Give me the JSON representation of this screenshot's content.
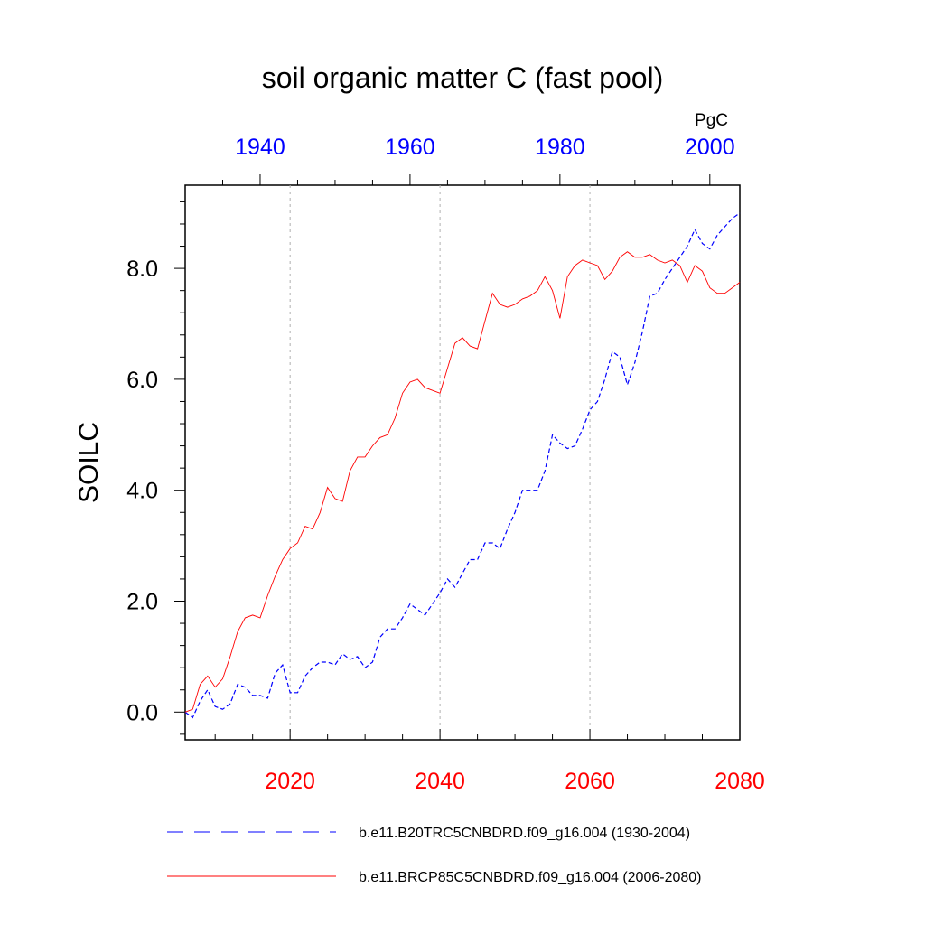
{
  "chart_data": {
    "type": "line",
    "title": "soil organic matter C (fast pool)",
    "ylabel": "SOILC",
    "units": "PgC",
    "ylim": [
      -0.5,
      9.5
    ],
    "y_ticks": [
      "0.0",
      "2.0",
      "4.0",
      "6.0",
      "8.0"
    ],
    "y_tick_values": [
      0,
      2,
      4,
      6,
      8
    ],
    "x_bottom": {
      "range": [
        2006,
        2080
      ],
      "ticks": [
        "2020",
        "2040",
        "2060",
        "2080"
      ],
      "tick_values": [
        2020,
        2040,
        2060,
        2080
      ],
      "color": "#ff0000"
    },
    "x_top": {
      "range": [
        1930,
        2004
      ],
      "ticks": [
        "1940",
        "1960",
        "1980",
        "2000"
      ],
      "tick_values": [
        1940,
        1960,
        1980,
        2000
      ],
      "color": "#0000ff"
    },
    "grid": "vertical dotted at bottom-axis major ticks",
    "legend_position": "bottom",
    "series": [
      {
        "name": "b.e11.B20TRC5CNBDRD.f09_g16.004 (1930-2004)",
        "axis": "top",
        "color": "#0000ff",
        "style": "dashed",
        "x_start": 1930,
        "values": [
          0.0,
          -0.1,
          0.2,
          0.4,
          0.1,
          0.05,
          0.15,
          0.5,
          0.45,
          0.3,
          0.3,
          0.25,
          0.7,
          0.85,
          0.35,
          0.35,
          0.65,
          0.8,
          0.9,
          0.9,
          0.85,
          1.05,
          0.95,
          1.0,
          0.8,
          0.9,
          1.35,
          1.5,
          1.5,
          1.7,
          1.95,
          1.85,
          1.75,
          1.95,
          2.15,
          2.4,
          2.25,
          2.5,
          2.75,
          2.75,
          3.05,
          3.05,
          2.95,
          3.3,
          3.6,
          4.0,
          4.0,
          4.0,
          4.35,
          5.0,
          4.85,
          4.75,
          4.8,
          5.1,
          5.45,
          5.6,
          6.0,
          6.5,
          6.4,
          5.9,
          6.3,
          6.85,
          7.5,
          7.55,
          7.8,
          8.0,
          8.2,
          8.4,
          8.7,
          8.45,
          8.35,
          8.6,
          8.75,
          8.9,
          9.0
        ]
      },
      {
        "name": "b.e11.BRCP85C5CNBDRD.f09_g16.004 (2006-2080)",
        "axis": "bottom",
        "color": "#ff0000",
        "style": "solid",
        "x_start": 2006,
        "values": [
          0.0,
          0.05,
          0.5,
          0.65,
          0.45,
          0.6,
          1.0,
          1.45,
          1.7,
          1.75,
          1.7,
          2.1,
          2.45,
          2.75,
          2.95,
          3.05,
          3.35,
          3.3,
          3.6,
          4.05,
          3.85,
          3.8,
          4.35,
          4.6,
          4.6,
          4.8,
          4.95,
          5.0,
          5.3,
          5.75,
          5.95,
          6.0,
          5.85,
          5.8,
          5.75,
          6.2,
          6.65,
          6.75,
          6.6,
          6.55,
          7.05,
          7.55,
          7.35,
          7.3,
          7.35,
          7.45,
          7.5,
          7.6,
          7.85,
          7.6,
          7.1,
          7.85,
          8.05,
          8.15,
          8.1,
          8.05,
          7.8,
          7.95,
          8.2,
          8.3,
          8.2,
          8.2,
          8.25,
          8.15,
          8.1,
          8.15,
          8.05,
          7.75,
          8.05,
          7.95,
          7.65,
          7.55,
          7.55,
          7.65,
          7.75
        ]
      }
    ]
  }
}
